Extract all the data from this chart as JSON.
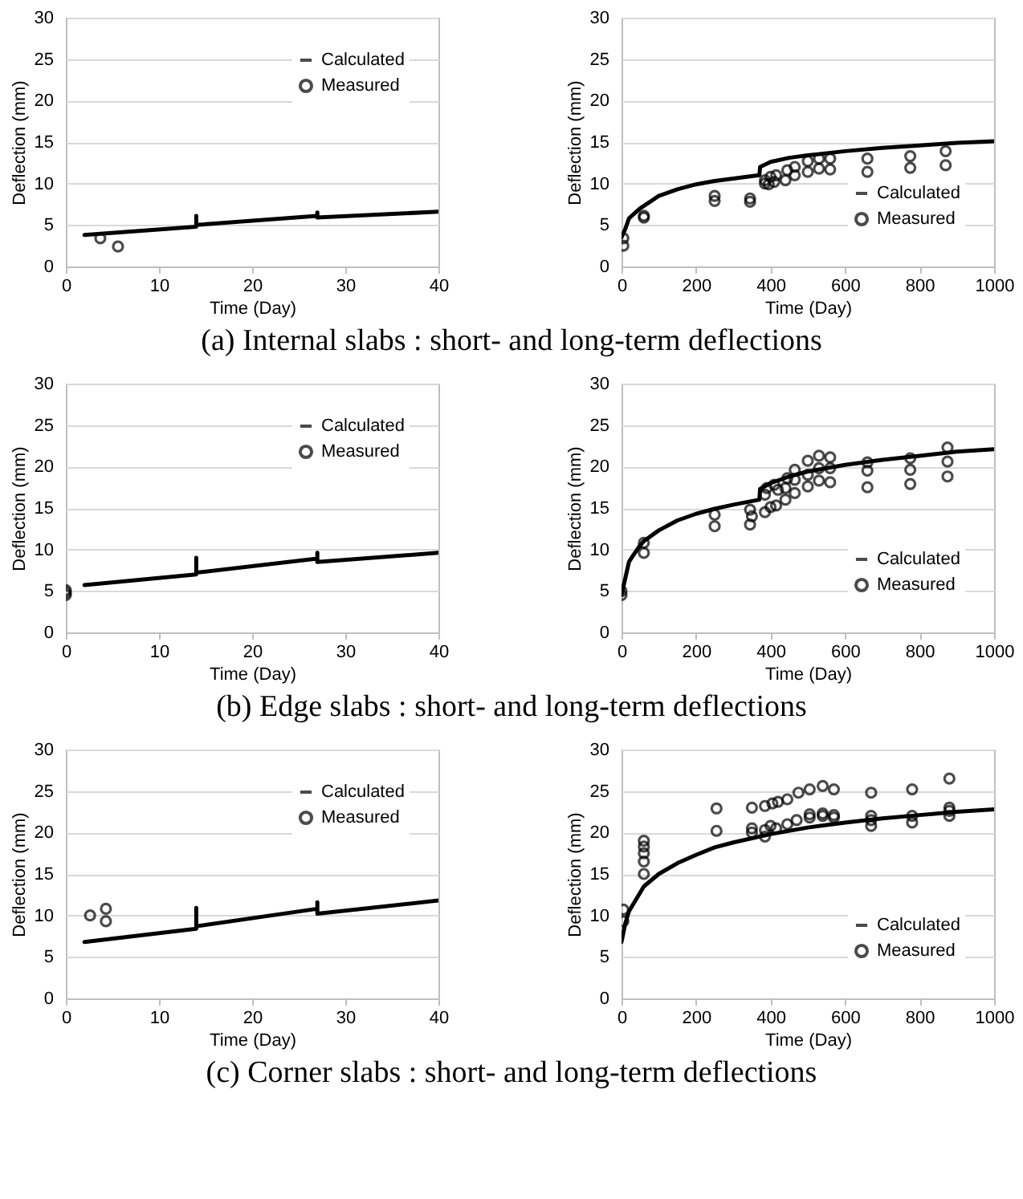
{
  "chart_data": [
    {
      "type": "line",
      "xlabel": "Time (Day)",
      "ylabel": "Deflection (mm)",
      "xlim": [
        0,
        40
      ],
      "xticks": [
        0,
        10,
        20,
        30,
        40
      ],
      "ylim": [
        0,
        30
      ],
      "yticks": [
        0,
        5,
        10,
        15,
        20,
        25,
        30
      ],
      "grid": "y",
      "legend": "top right",
      "annotations": [
        "(a) Internal slabs : short- and long-term deflections"
      ],
      "series": [
        {
          "name": "Calculated",
          "type": "line",
          "marker": "none",
          "color": "#000000",
          "x": [
            2,
            14,
            14,
            14,
            27,
            27,
            27,
            40
          ],
          "values": [
            3.8,
            4.8,
            6.1,
            5.0,
            6.1,
            6.5,
            5.9,
            6.6
          ]
        },
        {
          "name": "Measured",
          "type": "scatter",
          "marker": "circle",
          "color": "#000000",
          "x": [
            3.7,
            5.6
          ],
          "values": [
            3.4,
            2.4
          ]
        }
      ]
    },
    {
      "type": "line",
      "xlabel": "Time (Day)",
      "ylabel": "Deflection (mm)",
      "xlim": [
        0,
        1000
      ],
      "xticks": [
        0,
        200,
        400,
        600,
        800,
        1000
      ],
      "ylim": [
        0,
        30
      ],
      "yticks": [
        0,
        5,
        10,
        15,
        20,
        25,
        30
      ],
      "grid": "y",
      "legend": "bottom right",
      "series": [
        {
          "name": "Calculated",
          "type": "line",
          "marker": "none",
          "color": "#000000",
          "x": [
            0,
            10,
            20,
            30,
            50,
            100,
            150,
            200,
            250,
            300,
            370,
            372,
            400,
            450,
            500,
            600,
            700,
            800,
            900,
            1000
          ],
          "values": [
            3.5,
            4.5,
            5.8,
            6.2,
            7.0,
            8.5,
            9.3,
            9.9,
            10.3,
            10.6,
            11.0,
            12.0,
            12.6,
            13.1,
            13.4,
            13.9,
            14.3,
            14.6,
            14.9,
            15.1
          ]
        },
        {
          "name": "Measured",
          "type": "scatter",
          "marker": "circle",
          "color": "#000000",
          "x": [
            5,
            5,
            60,
            60,
            250,
            250,
            345,
            345,
            385,
            385,
            395,
            400,
            410,
            415,
            440,
            445,
            465,
            465,
            500,
            500,
            530,
            530,
            560,
            560,
            660,
            660,
            775,
            775,
            870,
            870
          ],
          "values": [
            3.4,
            2.5,
            6.1,
            5.9,
            8.5,
            7.9,
            8.2,
            7.8,
            10.0,
            10.4,
            9.9,
            10.8,
            10.2,
            11.0,
            10.4,
            11.6,
            11.0,
            12.0,
            11.4,
            12.7,
            11.8,
            13.0,
            11.7,
            13.0,
            11.4,
            13.0,
            11.9,
            13.3,
            12.2,
            13.9
          ]
        }
      ]
    },
    {
      "type": "line",
      "xlabel": "Time (Day)",
      "ylabel": "Deflection (mm)",
      "xlim": [
        0,
        40
      ],
      "xticks": [
        0,
        10,
        20,
        30,
        40
      ],
      "ylim": [
        0,
        30
      ],
      "yticks": [
        0,
        5,
        10,
        15,
        20,
        25,
        30
      ],
      "grid": "y",
      "legend": "top right",
      "annotations": [
        "(b) Edge slabs : short- and long-term deflections"
      ],
      "series": [
        {
          "name": "Calculated",
          "type": "line",
          "marker": "none",
          "color": "#000000",
          "x": [
            2,
            14,
            14,
            14,
            27,
            27,
            27,
            40
          ],
          "values": [
            5.7,
            7.0,
            9.0,
            7.2,
            8.9,
            9.6,
            8.5,
            9.6
          ]
        },
        {
          "name": "Measured",
          "type": "scatter",
          "marker": "circle",
          "color": "#000000",
          "x": [
            0,
            0,
            0
          ],
          "values": [
            4.5,
            4.8,
            5.1
          ]
        }
      ]
    },
    {
      "type": "line",
      "xlabel": "Time (Day)",
      "ylabel": "Deflection (mm)",
      "xlim": [
        0,
        1000
      ],
      "xticks": [
        0,
        200,
        400,
        600,
        800,
        1000
      ],
      "ylim": [
        0,
        30
      ],
      "yticks": [
        0,
        5,
        10,
        15,
        20,
        25,
        30
      ],
      "grid": "y",
      "legend": "bottom right",
      "series": [
        {
          "name": "Calculated",
          "type": "line",
          "marker": "none",
          "color": "#000000",
          "x": [
            0,
            10,
            20,
            30,
            50,
            60,
            100,
            150,
            200,
            250,
            300,
            370,
            372,
            400,
            450,
            500,
            600,
            700,
            800,
            900,
            1000
          ],
          "values": [
            4.5,
            6.5,
            8.5,
            9.2,
            10.5,
            11.0,
            12.3,
            13.5,
            14.3,
            14.9,
            15.4,
            16.0,
            17.3,
            18.0,
            18.8,
            19.4,
            20.2,
            20.8,
            21.3,
            21.8,
            22.1
          ]
        },
        {
          "name": "Measured",
          "type": "scatter",
          "marker": "circle",
          "color": "#000000",
          "x": [
            0,
            0,
            60,
            60,
            250,
            250,
            345,
            345,
            350,
            385,
            385,
            390,
            400,
            410,
            415,
            420,
            440,
            440,
            445,
            465,
            465,
            465,
            500,
            500,
            500,
            530,
            530,
            530,
            560,
            560,
            560,
            660,
            660,
            660,
            775,
            775,
            775,
            875,
            875,
            875
          ],
          "values": [
            4.5,
            5.0,
            10.8,
            9.6,
            14.2,
            12.8,
            14.8,
            13.0,
            14.0,
            14.5,
            16.6,
            17.4,
            15.1,
            17.8,
            15.3,
            17.2,
            16.0,
            17.4,
            18.6,
            16.8,
            18.4,
            19.6,
            17.6,
            19.0,
            20.7,
            18.3,
            19.8,
            21.3,
            18.1,
            19.8,
            21.1,
            17.5,
            19.5,
            20.5,
            17.9,
            19.6,
            21.0,
            18.8,
            20.6,
            22.3
          ]
        }
      ]
    },
    {
      "type": "line",
      "xlabel": "Time (Day)",
      "ylabel": "Deflection (mm)",
      "xlim": [
        0,
        40
      ],
      "xticks": [
        0,
        10,
        20,
        30,
        40
      ],
      "ylim": [
        0,
        30
      ],
      "yticks": [
        0,
        5,
        10,
        15,
        20,
        25,
        30
      ],
      "grid": "y",
      "legend": "top right",
      "annotations": [
        "(c) Corner slabs : short- and long-term deflections"
      ],
      "series": [
        {
          "name": "Calculated",
          "type": "line",
          "marker": "none",
          "color": "#000000",
          "x": [
            2,
            14,
            14,
            14,
            27,
            27,
            27,
            40
          ],
          "values": [
            6.8,
            8.4,
            10.9,
            8.7,
            10.8,
            11.6,
            10.2,
            11.8
          ]
        },
        {
          "name": "Measured",
          "type": "scatter",
          "marker": "circle",
          "color": "#000000",
          "x": [
            2.6,
            4.3,
            4.3
          ],
          "values": [
            10.0,
            10.8,
            9.3
          ]
        }
      ]
    },
    {
      "type": "line",
      "xlabel": "Time (Day)",
      "ylabel": "Deflection (mm)",
      "xlim": [
        0,
        1000
      ],
      "xticks": [
        0,
        200,
        400,
        600,
        800,
        1000
      ],
      "ylim": [
        0,
        30
      ],
      "yticks": [
        0,
        5,
        10,
        15,
        20,
        25,
        30
      ],
      "grid": "y",
      "legend": "bottom right",
      "series": [
        {
          "name": "Calculated",
          "type": "line",
          "marker": "none",
          "color": "#000000",
          "x": [
            0,
            10,
            20,
            40,
            60,
            100,
            150,
            200,
            250,
            300,
            400,
            500,
            600,
            700,
            800,
            900,
            1000
          ],
          "values": [
            6.8,
            9.0,
            10.5,
            12.0,
            13.5,
            15.0,
            16.3,
            17.3,
            18.2,
            18.8,
            19.8,
            20.6,
            21.2,
            21.7,
            22.1,
            22.5,
            22.8
          ]
        },
        {
          "name": "Measured",
          "type": "scatter",
          "marker": "circle",
          "color": "#000000",
          "x": [
            5,
            5,
            60,
            60,
            60,
            60,
            60,
            255,
            255,
            350,
            350,
            350,
            385,
            385,
            385,
            400,
            405,
            415,
            420,
            445,
            445,
            470,
            475,
            505,
            505,
            505,
            540,
            540,
            540,
            570,
            570,
            570,
            670,
            670,
            670,
            670,
            780,
            780,
            780,
            880,
            880,
            880,
            880
          ],
          "values": [
            9.3,
            10.7,
            15.0,
            16.5,
            17.5,
            18.3,
            19.0,
            20.2,
            22.9,
            20.0,
            20.5,
            23.0,
            19.5,
            20.3,
            23.2,
            20.8,
            23.5,
            20.5,
            23.7,
            21.0,
            24.0,
            21.5,
            24.8,
            21.8,
            22.2,
            25.2,
            22.0,
            22.3,
            25.6,
            21.8,
            22.1,
            25.2,
            20.8,
            21.5,
            22.0,
            24.8,
            21.2,
            22.0,
            25.2,
            22.0,
            22.6,
            23.0,
            26.5
          ]
        }
      ]
    }
  ]
}
